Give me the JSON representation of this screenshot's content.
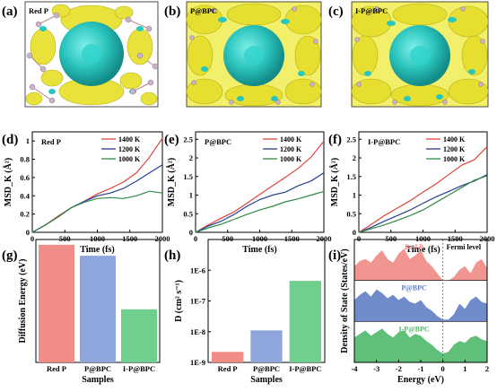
{
  "panels_top": [
    {
      "letter": "(a)",
      "label": "Red P"
    },
    {
      "letter": "(b)",
      "label": "P@BPC"
    },
    {
      "letter": "(c)",
      "label": "I-P@BPC"
    }
  ],
  "colors": {
    "red": "#e0463c",
    "blue": "#283f91",
    "green": "#2f8a45",
    "bar_red": "#f28c87",
    "bar_blue": "#8ea6dc",
    "bar_green": "#6fcf8d",
    "dos_red": "#ef8a85",
    "dos_blue": "#5f7ec3",
    "dos_green": "#4fb86a",
    "isosurface_yellow": "#e8e23a",
    "isosurface_cyan": "#27c6c0"
  },
  "chart_data": [
    {
      "panel": "(d)",
      "type": "line",
      "inner_label": "Red P",
      "xlabel": "Time (fs)",
      "ylabel": "MSD_K (Å²)",
      "xlim": [
        0,
        2000
      ],
      "ylim": [
        0,
        1.1
      ],
      "xticks": [
        0,
        500,
        1000,
        1500,
        2000
      ],
      "yticks": [
        0,
        0.2,
        0.4,
        0.6,
        0.8,
        1.0
      ],
      "legend": "top-right",
      "series": [
        {
          "name": "1400 K",
          "color": "red",
          "x": [
            0,
            200,
            400,
            600,
            800,
            1000,
            1200,
            1400,
            1600,
            1800,
            2000
          ],
          "y": [
            0,
            0.08,
            0.18,
            0.27,
            0.34,
            0.42,
            0.48,
            0.55,
            0.65,
            0.82,
            1.03
          ]
        },
        {
          "name": "1200 K",
          "color": "blue",
          "x": [
            0,
            200,
            400,
            600,
            800,
            1000,
            1200,
            1400,
            1600,
            1800,
            2000
          ],
          "y": [
            0,
            0.08,
            0.17,
            0.27,
            0.34,
            0.4,
            0.43,
            0.48,
            0.56,
            0.65,
            0.74
          ]
        },
        {
          "name": "1000 K",
          "color": "green",
          "x": [
            0,
            200,
            400,
            600,
            800,
            1000,
            1200,
            1400,
            1600,
            1800,
            2000
          ],
          "y": [
            0,
            0.08,
            0.17,
            0.27,
            0.33,
            0.37,
            0.38,
            0.37,
            0.4,
            0.45,
            0.43
          ]
        }
      ]
    },
    {
      "panel": "(e)",
      "type": "line",
      "inner_label": "P@BPC",
      "xlabel": "Time (fs)",
      "ylabel": "MSD_K (Å²)",
      "xlim": [
        0,
        2000
      ],
      "ylim": [
        0,
        2.7
      ],
      "xticks": [
        0,
        500,
        1000,
        1500,
        2000
      ],
      "yticks": [
        0,
        0.5,
        1.0,
        1.5,
        2.0,
        2.5
      ],
      "legend": "top-right",
      "series": [
        {
          "name": "1400 K",
          "color": "red",
          "x": [
            0,
            200,
            400,
            600,
            800,
            1000,
            1200,
            1400,
            1600,
            1800,
            2000
          ],
          "y": [
            0,
            0.2,
            0.38,
            0.55,
            0.78,
            1.02,
            1.25,
            1.48,
            1.72,
            2.02,
            2.45
          ]
        },
        {
          "name": "1200 K",
          "color": "blue",
          "x": [
            0,
            200,
            400,
            600,
            800,
            1000,
            1200,
            1400,
            1600,
            1800,
            2000
          ],
          "y": [
            0,
            0.17,
            0.3,
            0.48,
            0.7,
            0.88,
            1.0,
            1.08,
            1.25,
            1.38,
            1.6
          ]
        },
        {
          "name": "1000 K",
          "color": "green",
          "x": [
            0,
            200,
            400,
            600,
            800,
            1000,
            1200,
            1400,
            1600,
            1800,
            2000
          ],
          "y": [
            0,
            0.12,
            0.22,
            0.35,
            0.48,
            0.6,
            0.7,
            0.82,
            0.9,
            1.0,
            1.1
          ]
        }
      ]
    },
    {
      "panel": "(f)",
      "type": "line",
      "inner_label": "I-P@BPC",
      "xlabel": "Time (fs)",
      "ylabel": "MSD_K (Å²)",
      "xlim": [
        0,
        2000
      ],
      "ylim": [
        0,
        2.7
      ],
      "xticks": [
        0,
        500,
        1000,
        1500,
        2000
      ],
      "yticks": [
        0,
        0.5,
        1.0,
        1.5,
        2.0,
        2.5
      ],
      "legend": "top-right",
      "series": [
        {
          "name": "1400 K",
          "color": "red",
          "x": [
            0,
            200,
            400,
            600,
            800,
            1000,
            1200,
            1400,
            1600,
            1800,
            2000
          ],
          "y": [
            0,
            0.22,
            0.45,
            0.65,
            0.85,
            1.08,
            1.3,
            1.55,
            1.8,
            1.95,
            2.3
          ]
        },
        {
          "name": "1200 K",
          "color": "blue",
          "x": [
            0,
            200,
            400,
            600,
            800,
            1000,
            1200,
            1400,
            1600,
            1800,
            2000
          ],
          "y": [
            0,
            0.14,
            0.3,
            0.45,
            0.6,
            0.78,
            0.95,
            1.1,
            1.25,
            1.38,
            1.55
          ]
        },
        {
          "name": "1000 K",
          "color": "green",
          "x": [
            0,
            200,
            400,
            600,
            800,
            1000,
            1200,
            1400,
            1600,
            1800,
            2000
          ],
          "y": [
            0,
            0.1,
            0.2,
            0.32,
            0.45,
            0.6,
            0.8,
            1.0,
            1.2,
            1.4,
            1.52
          ]
        }
      ]
    },
    {
      "panel": "(g)",
      "type": "bar",
      "xlabel": "Samples",
      "ylabel": "Diffusion Energy (eV)",
      "ylim": [
        0,
        0.28
      ],
      "categories": [
        "Red P",
        "P@BPC",
        "I-P@BPC"
      ],
      "values": [
        0.268,
        0.243,
        0.121
      ],
      "bar_colors": [
        "bar_red",
        "bar_blue",
        "bar_green"
      ]
    },
    {
      "panel": "(h)",
      "type": "bar",
      "scale": "log",
      "xlabel": "Samples",
      "ylabel": "D (cm² s⁻¹)",
      "ylim": [
        1e-09,
        1e-05
      ],
      "yticks": [
        1e-09,
        1e-08,
        1e-07,
        1e-06
      ],
      "ytick_labels": [
        "1E-9",
        "1E-8",
        "1E-7",
        "1E-6"
      ],
      "categories": [
        "Red P",
        "P@BPC",
        "I-P@BPC"
      ],
      "values": [
        2.2e-09,
        1.1e-08,
        4.5e-07
      ],
      "bar_colors": [
        "bar_red",
        "bar_blue",
        "bar_green"
      ]
    },
    {
      "panel": "(i)",
      "type": "area",
      "xlabel": "Energy (eV)",
      "ylabel": "Density of State (States/eV)",
      "xlim": [
        -4,
        2
      ],
      "xticks": [
        -4,
        -3,
        -2,
        -1,
        0,
        1,
        2
      ],
      "annotation": "Fermi level",
      "series": [
        {
          "name": "Red P",
          "color": "dos_red",
          "x": [
            -4,
            -3.75,
            -3.5,
            -3.25,
            -3,
            -2.75,
            -2.5,
            -2.25,
            -2,
            -1.75,
            -1.5,
            -1.25,
            -1,
            -0.75,
            -0.5,
            -0.25,
            0,
            0.25,
            0.5,
            0.75,
            1,
            1.25,
            1.5,
            1.75,
            2
          ],
          "y": [
            0.4,
            0.55,
            0.6,
            0.5,
            0.7,
            0.85,
            0.6,
            0.5,
            0.75,
            0.9,
            0.6,
            0.7,
            0.85,
            0.55,
            0.4,
            0.2,
            0,
            0,
            0.1,
            0.3,
            0.4,
            0.2,
            0.5,
            0.6,
            0.35
          ]
        },
        {
          "name": "P@BPC",
          "color": "dos_blue",
          "x": [
            -4,
            -3.75,
            -3.5,
            -3.25,
            -3,
            -2.75,
            -2.5,
            -2.25,
            -2,
            -1.75,
            -1.5,
            -1.25,
            -1,
            -0.75,
            -0.5,
            -0.25,
            0,
            0.25,
            0.5,
            0.75,
            1,
            1.25,
            1.5,
            1.75,
            2
          ],
          "y": [
            0.6,
            0.75,
            0.85,
            0.7,
            0.9,
            0.8,
            0.65,
            0.75,
            0.6,
            0.7,
            0.55,
            0.5,
            0.6,
            0.4,
            0.3,
            0.15,
            0.05,
            0.05,
            0.2,
            0.5,
            0.35,
            0.6,
            0.7,
            0.55,
            0.5
          ]
        },
        {
          "name": "I-P@BPC",
          "color": "dos_green",
          "x": [
            -4,
            -3.75,
            -3.5,
            -3.25,
            -3,
            -2.75,
            -2.5,
            -2.25,
            -2,
            -1.75,
            -1.5,
            -1.25,
            -1,
            -0.75,
            -0.5,
            -0.25,
            0,
            0.25,
            0.5,
            0.75,
            1,
            1.25,
            1.5,
            1.75,
            2
          ],
          "y": [
            0.7,
            0.8,
            0.9,
            0.75,
            0.85,
            0.95,
            0.8,
            0.7,
            0.85,
            0.9,
            0.7,
            0.8,
            0.75,
            0.6,
            0.5,
            0.35,
            0.25,
            0.3,
            0.5,
            0.6,
            0.55,
            0.7,
            0.75,
            0.65,
            0.6
          ]
        }
      ]
    }
  ]
}
